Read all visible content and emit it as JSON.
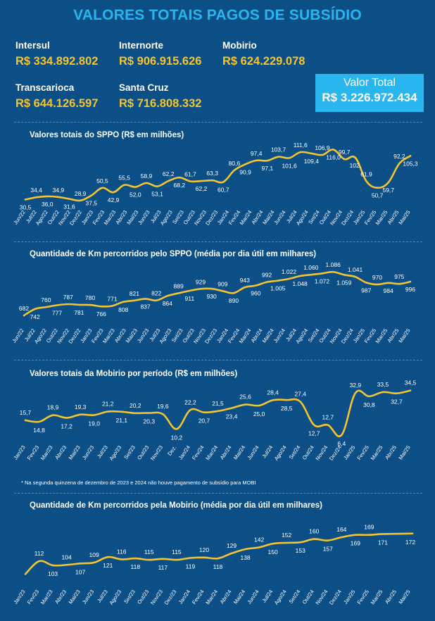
{
  "title": "VALORES TOTAIS PAGOS DE SUBSÍDIO",
  "operators": [
    {
      "name": "Intersul",
      "value": "R$ 334.892.802"
    },
    {
      "name": "Internorte",
      "value": "R$ 906.915.626"
    },
    {
      "name": "Mobirio",
      "value": "R$ 624.229.078"
    },
    {
      "name": "Transcarioca",
      "value": "R$ 644.126.597"
    },
    {
      "name": "Santa Cruz",
      "value": "R$ 716.808.332"
    }
  ],
  "total": {
    "label": "Valor Total",
    "value": "R$ 3.226.972.434"
  },
  "note": "* Na segunda quinzena de dezembro de 2023 e 2024 não houve pagamento de subsídio para MOBI",
  "colors": {
    "background": "#0c4f86",
    "accent": "#29b6ee",
    "line": "#f4c430",
    "values": "#f4c430"
  },
  "chart_data": [
    {
      "type": "line",
      "title": "Valores totais do SPPO (R$ em milhões)",
      "x": [
        "Jun/22",
        "Jul/22",
        "Ago/22",
        "Set/22",
        "Out/22",
        "Nov/22",
        "Dez/22",
        "Jan/23",
        "Fev/23",
        "Mar/23",
        "Abr/23",
        "Mai/23",
        "Jun/23",
        "Jul/23",
        "Ago/23",
        "Set/23",
        "Out/23",
        "Nov/23",
        "Dez/23",
        "Jan/24",
        "Fev/24",
        "Mar/24",
        "Abr/24",
        "Mai/24",
        "Jun/24",
        "Jul/24",
        "Ago/24",
        "Set/24",
        "Out/24",
        "Nov/24",
        "Dez/24",
        "Jan/25",
        "Fev/25",
        "Mar/25",
        "Abr/25",
        "Mai/25"
      ],
      "x_labels": [
        "Jun/22",
        "Jul/22",
        "Ago/22",
        "Out/22",
        "Nov/22",
        "Dez/22",
        "Jan/23",
        "Fev/23",
        "Mar/23",
        "Abr/23",
        "Mai/23",
        "Jun/23",
        "Jul/23",
        "Ago/23",
        "Set/23",
        "Out/23",
        "Nov/23",
        "Dez/23",
        "Jan/24",
        "Fev/24",
        "Mar/24",
        "Abr/24",
        "Mai/24",
        "Jun/24",
        "Jul/24",
        "Ago/24",
        "Set/24",
        "Out/24",
        "Nov/24",
        "Dez/24",
        "Jan/25",
        "Fev/25",
        "Mar/25",
        "Abr/25",
        "Mai/25"
      ],
      "y": [
        30.5,
        34.4,
        36.0,
        34.9,
        31.6,
        28.9,
        37.5,
        50.5,
        42.9,
        55.5,
        52.0,
        58.9,
        53.1,
        62.2,
        68.2,
        61.7,
        62.2,
        63.3,
        60.7,
        80.6,
        90.9,
        97.4,
        97.1,
        103.7,
        101.6,
        111.6,
        109.4,
        106.9,
        116.0,
        99.7,
        102.0,
        61.9,
        50.7,
        59.7,
        92.2,
        105.3
      ],
      "labels": [
        "30,5",
        "34,4",
        "36,0",
        "34,9",
        "31,6",
        "28,9",
        "37,5",
        "50,5",
        "42,9",
        "55,5",
        "52,0",
        "58,9",
        "53,1",
        "62,2",
        "68,2",
        "61,7",
        "62,2",
        "63,3",
        "60,7",
        "80,6",
        "90,9",
        "97,4",
        "97,1",
        "103,7",
        "101,6",
        "111,6",
        "109,4",
        "106,9",
        "116,0",
        "99,7",
        "102,",
        "61,9",
        "50,7",
        "59,7",
        "92,2",
        "105,3"
      ],
      "label_pos": [
        "b",
        "a",
        "b",
        "a",
        "b",
        "a",
        "b",
        "a",
        "b",
        "a",
        "b",
        "a",
        "b",
        "a",
        "b",
        "a",
        "b",
        "a",
        "b",
        "a",
        "b",
        "a",
        "b",
        "a",
        "b",
        "a",
        "b",
        "a",
        "b",
        "a",
        "b",
        "a",
        "b",
        "b",
        "a",
        "b"
      ],
      "ylim": [
        25,
        125
      ]
    },
    {
      "type": "line",
      "title": "Quantidade de Km percorridos pelo SPPO (média por dia útil em milhares)",
      "x": [
        "Jun/22",
        "Jul/22",
        "Ago/22",
        "Set/22",
        "Out/22",
        "Nov/22",
        "Dez/22",
        "Jan/23",
        "Fev/23",
        "Mar/23",
        "Abr/23",
        "Mai/23",
        "Jun/23",
        "Jul/23",
        "Ago/23",
        "Set/23",
        "Out/23",
        "Nov/23",
        "Dez/23",
        "Jan/24",
        "Fev/24",
        "Mar/24",
        "Abr/24",
        "Mai/24",
        "Jun/24",
        "Jul/24",
        "Ago/24",
        "Set/24",
        "Out/24",
        "Nov/24",
        "Dez/24",
        "Jan/25",
        "Fev/25",
        "Mar/25",
        "Abr/25",
        "Mai/25"
      ],
      "x_labels": [
        "Jun/22",
        "Jul/22",
        "Ago/22",
        "Out/22",
        "Nov/22",
        "Dez/22",
        "Jan/23",
        "Fev/23",
        "Mar/23",
        "Abr/23",
        "Mai/23",
        "Jun/23",
        "Jul/23",
        "Ago/23",
        "Set/23",
        "Out/23",
        "Nov/23",
        "Dez/23",
        "Jan/24",
        "Fev/24",
        "Mar/24",
        "Abr/24",
        "Mai/24",
        "Jun/24",
        "Jul/24",
        "Ago/24",
        "Set/24",
        "Out/24",
        "Nov/24",
        "Dez/24",
        "Jan/25",
        "Fev/25",
        "Mar/25",
        "Abr/25",
        "Mai/25"
      ],
      "y": [
        682,
        742,
        760,
        777,
        787,
        781,
        780,
        766,
        771,
        808,
        821,
        837,
        822,
        864,
        889,
        911,
        929,
        930,
        909,
        890,
        943,
        960,
        992,
        1005,
        1022,
        1048,
        1060,
        1072,
        1086,
        1059,
        1041,
        987,
        970,
        984,
        975,
        996
      ],
      "labels": [
        "682",
        "742",
        "760",
        "777",
        "787",
        "781",
        "780",
        "766",
        "771",
        "808",
        "821",
        "837",
        "822",
        "864",
        "889",
        "911",
        "929",
        "930",
        "909",
        "890",
        "943",
        "960",
        "992",
        "1.005",
        "1.022",
        "1.048",
        "1.060",
        "1.072",
        "1.086",
        "1.059",
        "1.041",
        "987",
        "970",
        "984",
        "975",
        "996"
      ],
      "label_pos": [
        "a",
        "b",
        "a",
        "b",
        "a",
        "b",
        "a",
        "b",
        "a",
        "b",
        "a",
        "b",
        "a",
        "b",
        "a",
        "b",
        "a",
        "b",
        "a",
        "b",
        "a",
        "b",
        "a",
        "b",
        "a",
        "b",
        "a",
        "b",
        "a",
        "b",
        "a",
        "b",
        "a",
        "b",
        "a",
        "b"
      ],
      "ylim": [
        650,
        1120
      ]
    },
    {
      "type": "line",
      "title": "Valores totais da Mobirio por período (R$ em milhões)",
      "x": [
        "Jan/23",
        "Fev/23",
        "Mar/23",
        "Abr/23",
        "Mai/23",
        "Jun/23",
        "Jul/23",
        "Ago/23",
        "Set/23",
        "Out/23",
        "Nov/23",
        "Dez.",
        "Jan/24",
        "Fev/24",
        "Mar/24",
        "Abr/24",
        "Mai/24",
        "Jun/24",
        "Jul/24",
        "Ago/24",
        "Set/24",
        "Out/24",
        "Nov/24",
        "Dez/24",
        "Jan/25",
        "Fev/25",
        "Mar/25",
        "Abr/25",
        "Mai/25"
      ],
      "x_labels": [
        "Jan/23",
        "Fev/23",
        "Mar/23",
        "Abr/23",
        "Mai/23",
        "Jun/23",
        "Jul/23",
        "Ago/23",
        "Set/23",
        "Out/23",
        "Nov/23",
        "Dez.",
        "Jan/24",
        "Fev/24",
        "Mar/24",
        "Abr/24",
        "Mai/24",
        "Jun/24",
        "Jul/24",
        "Ago/24",
        "Set/24",
        "Out/24",
        "Nov/24",
        "Dez/24",
        "Jan/25",
        "Fev/25",
        "Mar/25",
        "Abr/25",
        "Mai/25"
      ],
      "y": [
        15.7,
        14.8,
        18.9,
        17.2,
        19.3,
        19.0,
        21.2,
        21.1,
        20.2,
        20.3,
        19.6,
        10.2,
        22.2,
        20.7,
        21.5,
        23.4,
        25.6,
        25.0,
        28.4,
        28.5,
        27.4,
        12.7,
        12.7,
        6.4,
        32.9,
        30.8,
        33.5,
        32.7,
        34.5
      ],
      "labels": [
        "15,7",
        "14,8",
        "18,9",
        "17,2",
        "19,3",
        "19,0",
        "21,2",
        "21,1",
        "20,2",
        "20,3",
        "19,6",
        "10,2",
        "22,2",
        "20,7",
        "21,5",
        "23,4",
        "25,6",
        "25,0",
        "28,4",
        "28,5",
        "27,4",
        "12,7",
        "12,7",
        "6,4",
        "32,9",
        "30,8",
        "33,5",
        "32,7",
        "34,5"
      ],
      "label_pos": [
        "a",
        "b",
        "a",
        "b",
        "a",
        "b",
        "a",
        "b",
        "a",
        "b",
        "a",
        "b",
        "a",
        "b",
        "a",
        "b",
        "a",
        "b",
        "a",
        "b",
        "a",
        "b",
        "a",
        "b",
        "a",
        "b",
        "a",
        "b",
        "a"
      ],
      "ylim": [
        5,
        37
      ]
    },
    {
      "type": "line",
      "title": "Quantidade de Km percorridos pela Mobirio (média por dia útil em milhares)",
      "x": [
        "Jan/23",
        "Fev/23",
        "Mar/23",
        "Abr/23",
        "Mai/23",
        "Jun/23",
        "Jul/23",
        "Ago/23",
        "Set/23",
        "Out/23",
        "Nov/23",
        "Dez/23",
        "Jan/24",
        "Fev/24",
        "Mar/24",
        "Abr/24",
        "Mai/24",
        "Jun/24",
        "Jul/24",
        "Ago/24",
        "Set/24",
        "Out/24",
        "Nov/24",
        "Dez/24",
        "Jan/25",
        "Fev/25",
        "Mar/25",
        "Abr/25",
        "Mai/25"
      ],
      "x_labels": [
        "Jan/23",
        "Fev/23",
        "Mar/23",
        "Abr/23",
        "Mai/23",
        "Jun/23",
        "Jul/23",
        "Ago/23",
        "Set/23",
        "Out/23",
        "Nov/23",
        "Dez/23",
        "Jan/24",
        "Fev/24",
        "Mar/24",
        "Abr/24",
        "Mai/24",
        "Jun/24",
        "Jul/24",
        "Ago/24",
        "Set/24",
        "Out/24",
        "Nov/24",
        "Dez/24",
        "Jan/25",
        "Fev/25",
        "Mar/25",
        "Abr/25",
        "Mai/25"
      ],
      "y": [
        null,
        112,
        103,
        104,
        107,
        109,
        121,
        116,
        118,
        115,
        117,
        115,
        119,
        120,
        118,
        129,
        138,
        142,
        150,
        152,
        153,
        160,
        157,
        164,
        169,
        169,
        171,
        null,
        172
      ],
      "labels": [
        "",
        "112",
        "103",
        "104",
        "107",
        "109",
        "121",
        "116",
        "118",
        "115",
        "117",
        "115",
        "119",
        "120",
        "118",
        "129",
        "138",
        "142",
        "150",
        "152",
        "153",
        "160",
        "157",
        "164",
        "169",
        "169",
        "171",
        "",
        "172"
      ],
      "label_pos": [
        "a",
        "a",
        "b",
        "a",
        "b",
        "a",
        "b",
        "a",
        "b",
        "a",
        "b",
        "a",
        "b",
        "a",
        "b",
        "a",
        "b",
        "a",
        "b",
        "a",
        "b",
        "a",
        "b",
        "a",
        "b",
        "a",
        "b",
        "a",
        "b"
      ],
      "line_start_value": 84,
      "line_end_extra": 172,
      "ylim": [
        80,
        190
      ]
    }
  ]
}
